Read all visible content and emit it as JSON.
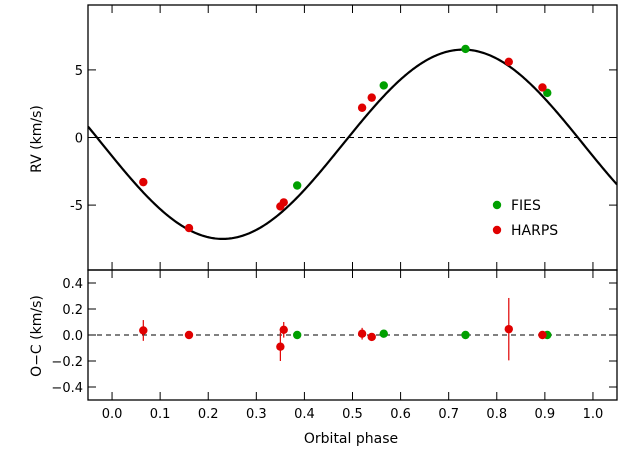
{
  "chart_data": {
    "type": "scatter",
    "xlabel": "Orbital phase",
    "xlim": [
      -0.05,
      1.05
    ],
    "x_ticks": [
      "0.0",
      "0.1",
      "0.2",
      "0.3",
      "0.4",
      "0.5",
      "0.6",
      "0.7",
      "0.8",
      "0.9",
      "1.0"
    ],
    "colors": {
      "FIES": "#00a000",
      "HARPS": "#e00000",
      "model": "#000000"
    },
    "legend": {
      "placement": "bottom-right",
      "entries": [
        "FIES",
        "HARPS"
      ]
    },
    "panels": [
      {
        "id": "rv",
        "ylabel": "RV (km/s)",
        "ylim": [
          -9.8,
          9.8
        ],
        "y_ticks": [
          "-5",
          "0",
          "5"
        ],
        "zero_line": "dashed",
        "model": {
          "type": "sine",
          "amplitude": 7.0,
          "offset": -0.5,
          "min_phase": 0.23
        },
        "series": [
          {
            "name": "FIES",
            "points": [
              [
                0.385,
                -3.55
              ],
              [
                0.565,
                3.85
              ],
              [
                0.735,
                6.55
              ],
              [
                0.905,
                3.3
              ]
            ]
          },
          {
            "name": "HARPS",
            "points": [
              [
                0.065,
                -3.3
              ],
              [
                0.16,
                -6.7
              ],
              [
                0.35,
                -5.1
              ],
              [
                0.357,
                -4.8
              ],
              [
                0.52,
                2.2
              ],
              [
                0.54,
                2.95
              ],
              [
                0.825,
                5.6
              ],
              [
                0.895,
                3.7
              ]
            ]
          }
        ]
      },
      {
        "id": "residuals",
        "ylabel": "O−C (km/s)",
        "ylim": [
          -0.5,
          0.5
        ],
        "y_ticks": [
          "−0.4",
          "−0.2",
          "0.0",
          "0.2",
          "0.4"
        ],
        "zero_line": "dashed",
        "series": [
          {
            "name": "FIES",
            "points": [
              [
                0.385,
                0.0,
                0.0
              ],
              [
                0.565,
                0.01,
                0.0
              ],
              [
                0.735,
                0.0,
                0.0
              ],
              [
                0.905,
                0.0,
                0.03
              ]
            ]
          },
          {
            "name": "HARPS",
            "points": [
              [
                0.065,
                0.035,
                0.08
              ],
              [
                0.16,
                0.0,
                0.02
              ],
              [
                0.35,
                -0.09,
                0.11
              ],
              [
                0.357,
                0.04,
                0.06
              ],
              [
                0.52,
                0.01,
                0.045
              ],
              [
                0.54,
                -0.015,
                0.03
              ],
              [
                0.825,
                0.045,
                0.24
              ],
              [
                0.895,
                0.0,
                0.02
              ]
            ]
          }
        ]
      }
    ]
  }
}
